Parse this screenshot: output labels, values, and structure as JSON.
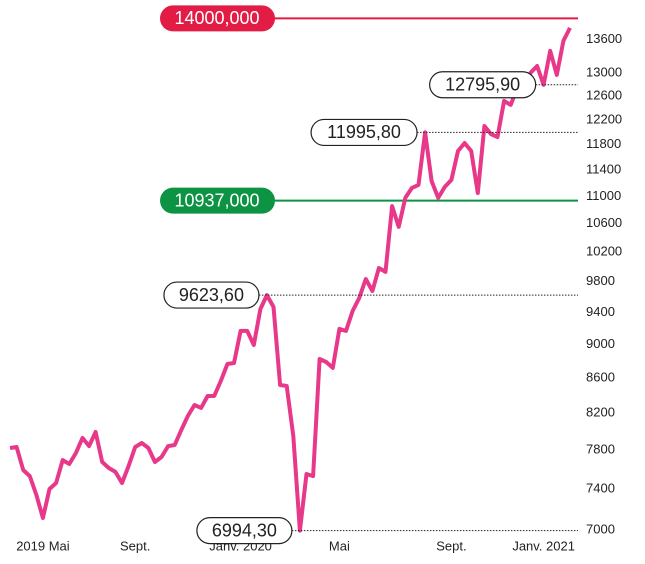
{
  "chart_data": {
    "type": "line",
    "categories": [
      null,
      null,
      null,
      null,
      null,
      "2019 Mai",
      null,
      null,
      null,
      null,
      null,
      null,
      null,
      null,
      null,
      null,
      null,
      null,
      null,
      "Sept.",
      null,
      null,
      null,
      null,
      null,
      null,
      null,
      null,
      null,
      null,
      null,
      null,
      null,
      null,
      null,
      "Janv. 2020",
      null,
      null,
      null,
      null,
      null,
      null,
      null,
      null,
      null,
      null,
      null,
      null,
      null,
      null,
      "Mai",
      null,
      null,
      null,
      null,
      null,
      null,
      null,
      null,
      null,
      null,
      null,
      null,
      null,
      null,
      null,
      null,
      "Sept.",
      null,
      null,
      null,
      null,
      null,
      null,
      null,
      null,
      null,
      null,
      null,
      null,
      null,
      "Janv. 2021",
      null,
      null,
      null,
      null
    ],
    "series": [
      {
        "color": "#e8388a",
        "values": [
          7823,
          7833,
          7593,
          7531,
          7340,
          7115,
          7400,
          7460,
          7696,
          7655,
          7770,
          7930,
          7843,
          7994,
          7676,
          7614,
          7573,
          7460,
          7634,
          7833,
          7876,
          7823,
          7676,
          7728,
          7843,
          7855,
          8016,
          8170,
          8292,
          8259,
          8394,
          8394,
          8566,
          8765,
          8777,
          9167,
          9167,
          8994,
          9444,
          9623.6,
          9470,
          8520,
          8508,
          7951,
          6994.3,
          7552,
          7531,
          8825,
          8789,
          8719,
          9192,
          9167,
          9418,
          9586,
          9836,
          9677,
          9983,
          9930,
          10857,
          10554,
          10977,
          11127,
          11172,
          11995.8,
          11232,
          10977,
          11142,
          11248,
          11698,
          11826,
          11698,
          11051,
          12101,
          11971,
          11922,
          12519,
          12451,
          12741,
          12759,
          13003,
          13126,
          12795.9,
          13397,
          12968,
          13579,
          13821
        ]
      }
    ],
    "ylim": [
      6906,
      14160
    ],
    "log_scale": true,
    "yticks": [
      7000,
      7400,
      7800,
      8200,
      8600,
      9000,
      9400,
      9800,
      10200,
      10600,
      11000,
      11400,
      11800,
      12200,
      12600,
      13000,
      13600
    ],
    "reference_lines": [
      {
        "value": 14000,
        "label": "14000,000",
        "color": "#e31c45"
      },
      {
        "value": 10937,
        "label": "10937,000",
        "color": "#0c9444"
      }
    ],
    "annotations": [
      {
        "value": 12795.9,
        "label": "12795,90"
      },
      {
        "value": 11995.8,
        "label": "11995,80"
      },
      {
        "value": 9623.6,
        "label": "9623,60"
      },
      {
        "value": 6994.3,
        "label": "6994,30"
      }
    ]
  }
}
